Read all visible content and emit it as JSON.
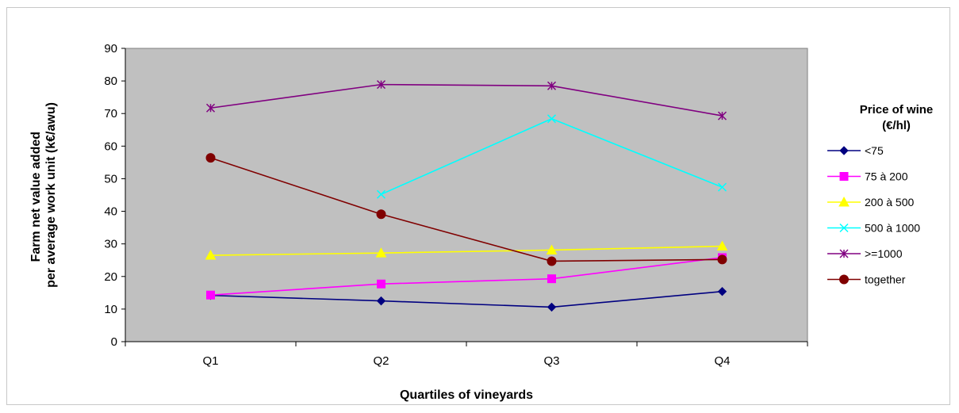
{
  "chart_data": {
    "type": "line",
    "categories": [
      "Q1",
      "Q2",
      "Q3",
      "Q4"
    ],
    "xlabel": "Quartiles of vineyards",
    "ylabel_lines": [
      "Farm net value added",
      "per average work unit (k€/awu)"
    ],
    "ylim": [
      0,
      90
    ],
    "yticks": [
      0,
      10,
      20,
      30,
      40,
      50,
      60,
      70,
      80,
      90
    ],
    "grid": false,
    "plot_background": "#c0c0c0",
    "legend_title_lines": [
      "Price of wine",
      "(€/hl)"
    ],
    "legend_position": "right",
    "series": [
      {
        "name": "<75",
        "color": "#000080",
        "marker": "diamond",
        "values": [
          14.2,
          12.5,
          10.6,
          15.4
        ]
      },
      {
        "name": "75 à 200",
        "color": "#ff00ff",
        "marker": "square",
        "values": [
          14.3,
          17.7,
          19.3,
          25.8
        ]
      },
      {
        "name": "200 à 500",
        "color": "#ffff00",
        "marker": "triangle",
        "values": [
          26.5,
          27.2,
          28.1,
          29.3
        ]
      },
      {
        "name": "500 à 1000",
        "color": "#00ffff",
        "marker": "x",
        "values": [
          null,
          45.2,
          68.4,
          47.4
        ]
      },
      {
        "name": ">=1000",
        "color": "#800080",
        "marker": "star",
        "values": [
          71.7,
          78.9,
          78.5,
          69.3
        ]
      },
      {
        "name": "together",
        "color": "#800000",
        "marker": "circle",
        "values": [
          56.4,
          39.1,
          24.7,
          25.2
        ]
      }
    ]
  }
}
